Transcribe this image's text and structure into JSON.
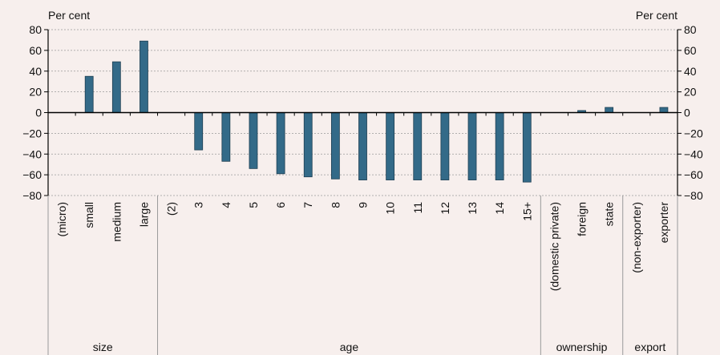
{
  "chart_data": {
    "type": "bar",
    "ylabel_left": "Per cent",
    "ylabel_right": "Per cent",
    "ylim": [
      -80,
      80
    ],
    "yticks": [
      80,
      60,
      40,
      20,
      0,
      -20,
      -40,
      -60,
      -80
    ],
    "ytick_labels": [
      "80",
      "60",
      "40",
      "20",
      "0",
      "−20",
      "−40",
      "−60",
      "−80"
    ],
    "grid": true,
    "bar_color": "#336a88",
    "categories": [
      "(micro)",
      "small",
      "medium",
      "large",
      "(2)",
      "3",
      "4",
      "5",
      "6",
      "7",
      "8",
      "9",
      "10",
      "11",
      "12",
      "13",
      "14",
      "15+",
      "(domestic private)",
      "foreign",
      "state",
      "(non-exporter)",
      "exporter"
    ],
    "values": [
      0,
      35,
      49,
      69,
      0,
      -36,
      -47,
      -54,
      -59,
      -62,
      -64,
      -65,
      -65,
      -65,
      -65,
      -65,
      -65,
      -67,
      0,
      2,
      5,
      0,
      5
    ],
    "groups": [
      {
        "label": "size",
        "count": 4
      },
      {
        "label": "age",
        "count": 14
      },
      {
        "label": "ownership",
        "count": 3
      },
      {
        "label": "export",
        "count": 2
      }
    ]
  }
}
